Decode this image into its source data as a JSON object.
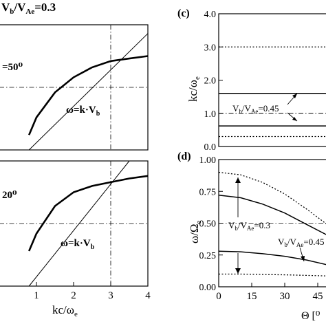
{
  "chart_data": [
    {
      "panel": "top-left",
      "type": "line",
      "x_range": [
        0,
        4
      ],
      "y_range": [
        0,
        1
      ],
      "xticks": [],
      "series": [
        {
          "x": [
            0.8,
            1,
            1.5,
            2,
            2.5,
            3,
            3.5,
            4
          ],
          "y": [
            0.12,
            0.26,
            0.46,
            0.58,
            0.66,
            0.71,
            0.73,
            0.75
          ],
          "style": "thick"
        },
        {
          "x": [
            0.8,
            4
          ],
          "y": [
            0.0,
            0.93
          ],
          "style": "thin"
        }
      ],
      "hline": {
        "y": 0.5,
        "style": "dash-dot"
      },
      "vline": {
        "x": 3,
        "style": "dash-dot"
      },
      "annotations": {
        "angle": "=50⁰",
        "formula": "ω=k·V",
        "formula_sub": "b"
      }
    },
    {
      "panel": "bottom-left",
      "type": "line",
      "x_range": [
        0,
        4
      ],
      "y_range": [
        0,
        1
      ],
      "xticks": [
        "1",
        "2",
        "3",
        "4"
      ],
      "xlabel": "kc/ω",
      "xlabel_sub": "e",
      "series": [
        {
          "x": [
            0.8,
            1,
            1.5,
            2,
            2.5,
            3,
            3.5,
            4
          ],
          "y": [
            0.28,
            0.42,
            0.64,
            0.75,
            0.8,
            0.83,
            0.86,
            0.88
          ],
          "style": "thick"
        },
        {
          "x": [
            0.8,
            3.5
          ],
          "y": [
            0.0,
            1.0
          ],
          "style": "thin"
        }
      ],
      "hline": {
        "y": 0.5,
        "style": "dash-dot"
      },
      "vline": {
        "x": 3,
        "style": "dash-dot"
      },
      "annotations": {
        "angle": "20⁰",
        "formula": "ω=k·V",
        "formula_sub": "b"
      }
    },
    {
      "panel": "c",
      "type": "line",
      "label": "(c)",
      "ylabel": "kc/ω",
      "ylabel_sub": "e",
      "y_range": [
        0,
        4
      ],
      "yticks": [
        "0.0",
        "1.0",
        "2.0",
        "3.0",
        "4.0"
      ],
      "yticks_values": [
        0,
        1,
        2,
        3,
        4
      ],
      "series": [
        {
          "y": 3.0,
          "style": "dotted"
        },
        {
          "y": 1.6,
          "style": "solid"
        },
        {
          "y": 1.0,
          "style": "dash-dot"
        },
        {
          "y": 0.62,
          "style": "solid"
        },
        {
          "y": 0.3,
          "style": "dotted"
        }
      ],
      "annotations": {
        "ratio": "V",
        "ratio_sub1": "b",
        "ratio_sub2": "Ae",
        "ratio_value": "=0.45"
      }
    },
    {
      "panel": "d",
      "type": "line",
      "label": "(d)",
      "ylabel": "ω/Ω",
      "ylabel_sub": "e",
      "xlabel": "Θ [⁰",
      "x_range": [
        0,
        50
      ],
      "y_range": [
        0,
        1
      ],
      "xticks": [
        "0",
        "15",
        "30",
        "45"
      ],
      "xticks_values": [
        0,
        15,
        30,
        45
      ],
      "yticks": [
        "0.00",
        "0.25",
        "0.50",
        "0.75",
        "1.00"
      ],
      "yticks_values": [
        0,
        0.25,
        0.5,
        0.75,
        1
      ],
      "series": [
        {
          "x": [
            0,
            10,
            20,
            30,
            40,
            50
          ],
          "y": [
            0.9,
            0.88,
            0.82,
            0.73,
            0.61,
            0.48
          ],
          "style": "dotted"
        },
        {
          "x": [
            0,
            10,
            20,
            30,
            40,
            50
          ],
          "y": [
            0.72,
            0.7,
            0.65,
            0.58,
            0.49,
            0.4
          ],
          "style": "solid"
        },
        {
          "x": [
            0,
            10,
            20,
            30,
            40,
            50
          ],
          "y": [
            0.28,
            0.275,
            0.26,
            0.24,
            0.21,
            0.17
          ],
          "style": "solid"
        },
        {
          "x": [
            0,
            10,
            20,
            30,
            40,
            50
          ],
          "y": [
            0.1,
            0.1,
            0.097,
            0.094,
            0.09,
            0.085
          ],
          "style": "dotted"
        }
      ],
      "hline": {
        "y": 0.5,
        "style": "dash-dot"
      },
      "annotations": {
        "ratio_a": "V",
        "ratio_a_sub1": "b",
        "ratio_a_sub2": "Ae",
        "ratio_a_value": "=0.3",
        "ratio_b": "V",
        "ratio_b_sub1": "b",
        "ratio_b_sub2": "Ae",
        "ratio_b_value": "=0.45"
      }
    }
  ],
  "header": {
    "ratio": "V",
    "ratio_sub1": "b",
    "ratio_sub2": "Ae",
    "ratio_value": "=0.3"
  }
}
